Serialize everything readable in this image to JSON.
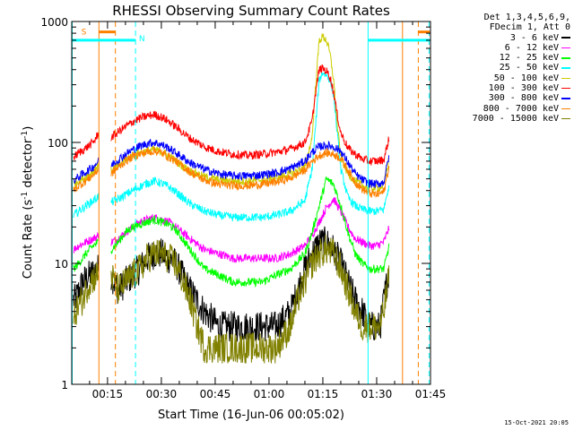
{
  "chart_data": {
    "type": "line",
    "title": "RHESSI Observing Summary Count Rates",
    "xlabel": "Start Time (16-Jun-06 00:05:02)",
    "ylabel_main": "Count Rate (s",
    "ylabel_sup1": "-1",
    "ylabel_mid": " detector",
    "ylabel_sup2": "-1",
    "ylabel_end": ")",
    "y_scale": "log",
    "ylim": [
      1,
      1000
    ],
    "xlim_minutes": [
      5.03,
      105
    ],
    "x_ticks": [
      {
        "label": "00:15",
        "m": 15
      },
      {
        "label": "00:30",
        "m": 30
      },
      {
        "label": "00:45",
        "m": 45
      },
      {
        "label": "01:00",
        "m": 60
      },
      {
        "label": "01:15",
        "m": 75
      },
      {
        "label": "01:30",
        "m": 90
      },
      {
        "label": "01:45",
        "m": 105
      }
    ],
    "y_ticks": [
      {
        "label": "1",
        "v": 1
      },
      {
        "label": "10",
        "v": 10
      },
      {
        "label": "100",
        "v": 100
      },
      {
        "label": "1000",
        "v": 1000
      }
    ],
    "legend_header": [
      "Det 1,3,4,5,6,9,",
      "FDecim 1, Att 0"
    ],
    "series": [
      {
        "name": "3 - 6 keV",
        "color": "#000000",
        "x": [
          5.5,
          6,
          8,
          10,
          12,
          14,
          16,
          18,
          20,
          22,
          24,
          26,
          28,
          30,
          32,
          34,
          38,
          42,
          46,
          50,
          54,
          58,
          62,
          66,
          68,
          70,
          72,
          74,
          76,
          78,
          80,
          82,
          84,
          86,
          88,
          90,
          91,
          92,
          93.5
        ],
        "values": [
          5,
          5,
          7,
          8,
          9,
          9,
          8,
          6,
          7,
          8,
          9,
          11,
          12,
          12,
          11,
          10,
          6,
          4,
          3,
          3,
          3,
          3,
          3,
          4,
          6,
          9,
          12,
          15,
          15,
          13,
          10,
          7,
          5,
          4,
          3,
          3,
          3,
          5,
          9
        ]
      },
      {
        "name": "6 - 12 keV",
        "color": "#ff00ff",
        "x": [
          5.5,
          7,
          9,
          11,
          12.5,
          16,
          18,
          20,
          22,
          24,
          26,
          28,
          30,
          32,
          34,
          38,
          42,
          46,
          50,
          54,
          58,
          62,
          66,
          70,
          72,
          74,
          76,
          78,
          80,
          82,
          84,
          86,
          88,
          90,
          92,
          93.5
        ],
        "values": [
          13,
          14,
          15,
          16,
          17,
          15,
          16,
          18,
          20,
          22,
          23,
          24,
          23,
          22,
          20,
          16,
          13,
          12,
          11,
          11,
          11,
          11,
          12,
          14,
          17,
          22,
          29,
          34,
          27,
          20,
          16,
          15,
          14,
          14,
          15,
          20
        ]
      },
      {
        "name": "12 - 25 keV",
        "color": "#00ff00",
        "x": [
          5.5,
          7,
          9,
          11,
          12.5,
          16,
          18,
          20,
          22,
          24,
          26,
          28,
          30,
          32,
          34,
          38,
          42,
          46,
          50,
          54,
          58,
          62,
          66,
          70,
          72,
          74,
          76,
          78,
          80,
          82,
          84,
          86,
          88,
          90,
          92,
          93.5
        ],
        "values": [
          9,
          10,
          12,
          14,
          15,
          13,
          15,
          18,
          20,
          21,
          22,
          23,
          22,
          21,
          19,
          13,
          9,
          8,
          7,
          7,
          7,
          8,
          9,
          12,
          18,
          30,
          50,
          45,
          30,
          18,
          12,
          10,
          9,
          9,
          9,
          14
        ]
      },
      {
        "name": "25 - 50 keV",
        "color": "#00ffff",
        "x": [
          5.5,
          7,
          9,
          11,
          12.5,
          16,
          18,
          20,
          22,
          24,
          26,
          28,
          30,
          32,
          34,
          38,
          42,
          46,
          50,
          54,
          58,
          62,
          66,
          70,
          72,
          73,
          74,
          75,
          76,
          77,
          78,
          79,
          80,
          82,
          84,
          86,
          88,
          90,
          92,
          93.5
        ],
        "values": [
          25,
          27,
          30,
          33,
          36,
          32,
          34,
          37,
          40,
          43,
          46,
          48,
          46,
          43,
          39,
          31,
          27,
          25,
          24,
          24,
          24,
          25,
          27,
          33,
          60,
          140,
          330,
          380,
          360,
          330,
          250,
          120,
          60,
          35,
          30,
          28,
          27,
          27,
          28,
          45
        ]
      },
      {
        "name": "50 - 100 keV",
        "color": "#cccc00",
        "x": [
          5.5,
          7,
          9,
          11,
          12.5,
          16,
          18,
          20,
          22,
          24,
          26,
          28,
          30,
          32,
          34,
          38,
          42,
          46,
          50,
          54,
          58,
          62,
          66,
          70,
          72,
          73,
          74,
          75,
          76,
          77,
          78,
          79,
          80,
          82,
          84,
          86,
          88,
          90,
          92,
          93.5
        ],
        "values": [
          45,
          48,
          52,
          58,
          65,
          58,
          65,
          72,
          78,
          82,
          85,
          87,
          84,
          78,
          70,
          58,
          52,
          49,
          48,
          48,
          49,
          51,
          55,
          62,
          110,
          300,
          700,
          750,
          700,
          540,
          330,
          140,
          75,
          55,
          48,
          44,
          42,
          42,
          44,
          75
        ]
      },
      {
        "name": "100 - 300 keV",
        "color": "#ff0000",
        "x": [
          5.5,
          7,
          9,
          11,
          12.5,
          16,
          18,
          20,
          22,
          24,
          26,
          28,
          30,
          32,
          34,
          38,
          42,
          46,
          50,
          54,
          58,
          62,
          66,
          70,
          72,
          73,
          74,
          75,
          76,
          77,
          78,
          79,
          80,
          82,
          84,
          86,
          88,
          90,
          92,
          93.5
        ],
        "values": [
          75,
          82,
          90,
          100,
          118,
          110,
          122,
          135,
          148,
          158,
          165,
          170,
          162,
          150,
          135,
          108,
          92,
          84,
          80,
          78,
          80,
          83,
          88,
          100,
          150,
          260,
          400,
          410,
          390,
          350,
          260,
          170,
          120,
          90,
          80,
          73,
          70,
          70,
          72,
          110
        ]
      },
      {
        "name": "300 - 800 keV",
        "color": "#0000ff",
        "x": [
          5.5,
          7,
          9,
          11,
          12.5,
          16,
          18,
          20,
          22,
          24,
          26,
          28,
          30,
          32,
          34,
          38,
          42,
          46,
          50,
          54,
          58,
          62,
          66,
          70,
          72,
          74,
          76,
          78,
          80,
          82,
          84,
          86,
          88,
          90,
          92,
          93.5
        ],
        "values": [
          48,
          52,
          57,
          63,
          70,
          65,
          72,
          80,
          87,
          93,
          98,
          100,
          96,
          90,
          82,
          68,
          60,
          55,
          53,
          53,
          54,
          56,
          61,
          70,
          83,
          92,
          95,
          92,
          85,
          68,
          55,
          49,
          46,
          45,
          47,
          80
        ]
      },
      {
        "name": "800 - 7000 keV",
        "color": "#ff8000",
        "x": [
          5.5,
          7,
          9,
          11,
          12.5,
          16,
          18,
          20,
          22,
          24,
          26,
          28,
          30,
          32,
          34,
          38,
          42,
          46,
          50,
          54,
          58,
          62,
          66,
          70,
          72,
          74,
          76,
          78,
          80,
          82,
          84,
          86,
          88,
          90,
          92,
          93.5
        ],
        "values": [
          40,
          44,
          48,
          54,
          60,
          55,
          62,
          70,
          76,
          80,
          83,
          85,
          82,
          76,
          70,
          57,
          49,
          45,
          44,
          44,
          45,
          47,
          51,
          59,
          70,
          78,
          82,
          80,
          74,
          59,
          47,
          41,
          38,
          37,
          39,
          65
        ]
      },
      {
        "name": "7000 - 15000 keV",
        "color": "#808000",
        "x": [
          5.5,
          6,
          8,
          10,
          12,
          14,
          16,
          18,
          20,
          22,
          24,
          26,
          28,
          30,
          32,
          34,
          38,
          40,
          42,
          44,
          46,
          48,
          50,
          54,
          58,
          62,
          66,
          68,
          70,
          72,
          74,
          76,
          78,
          80,
          82,
          84,
          86,
          88,
          90,
          91,
          92,
          93.5
        ],
        "values": [
          3,
          4,
          5,
          7,
          8,
          9,
          8,
          6,
          7,
          8,
          9,
          11,
          12,
          12,
          11,
          10,
          5,
          3,
          2,
          2,
          2,
          2,
          2,
          2,
          2,
          2,
          3,
          5,
          7,
          10,
          12,
          13,
          12,
          9,
          6,
          4,
          3,
          3,
          3,
          3,
          4,
          8
        ]
      }
    ],
    "vlines": [
      {
        "m": 5.15,
        "color": "#00ffff",
        "dash": false
      },
      {
        "m": 12.6,
        "color": "#ff8000",
        "dash": false
      },
      {
        "m": 17.2,
        "color": "#ff8000",
        "dash": true
      },
      {
        "m": 22.8,
        "color": "#00ffff",
        "dash": true
      },
      {
        "m": 87.6,
        "color": "#00ffff",
        "dash": false
      },
      {
        "m": 97.2,
        "color": "#ff8000",
        "dash": false
      },
      {
        "m": 101.6,
        "color": "#ff8000",
        "dash": true
      },
      {
        "m": 104.6,
        "color": "#00ffff",
        "dash": true
      }
    ],
    "hbars": [
      {
        "m0": 5.2,
        "m1": 22.8,
        "v": 700,
        "color": "#00ffff"
      },
      {
        "m0": 87.6,
        "m1": 104.8,
        "v": 700,
        "color": "#00ffff"
      },
      {
        "m0": 12.6,
        "m1": 17.2,
        "v": 820,
        "color": "#ff8000"
      },
      {
        "m0": 101.6,
        "m1": 104.8,
        "v": 820,
        "color": "#ff8000"
      }
    ],
    "markers": [
      {
        "text": "S",
        "m": 8.4,
        "v": 780,
        "color": "#ff8000"
      },
      {
        "text": "N",
        "m": 24.6,
        "v": 690,
        "color": "#00ffff"
      }
    ]
  },
  "timestamp": "15-Oct-2021 20:05"
}
